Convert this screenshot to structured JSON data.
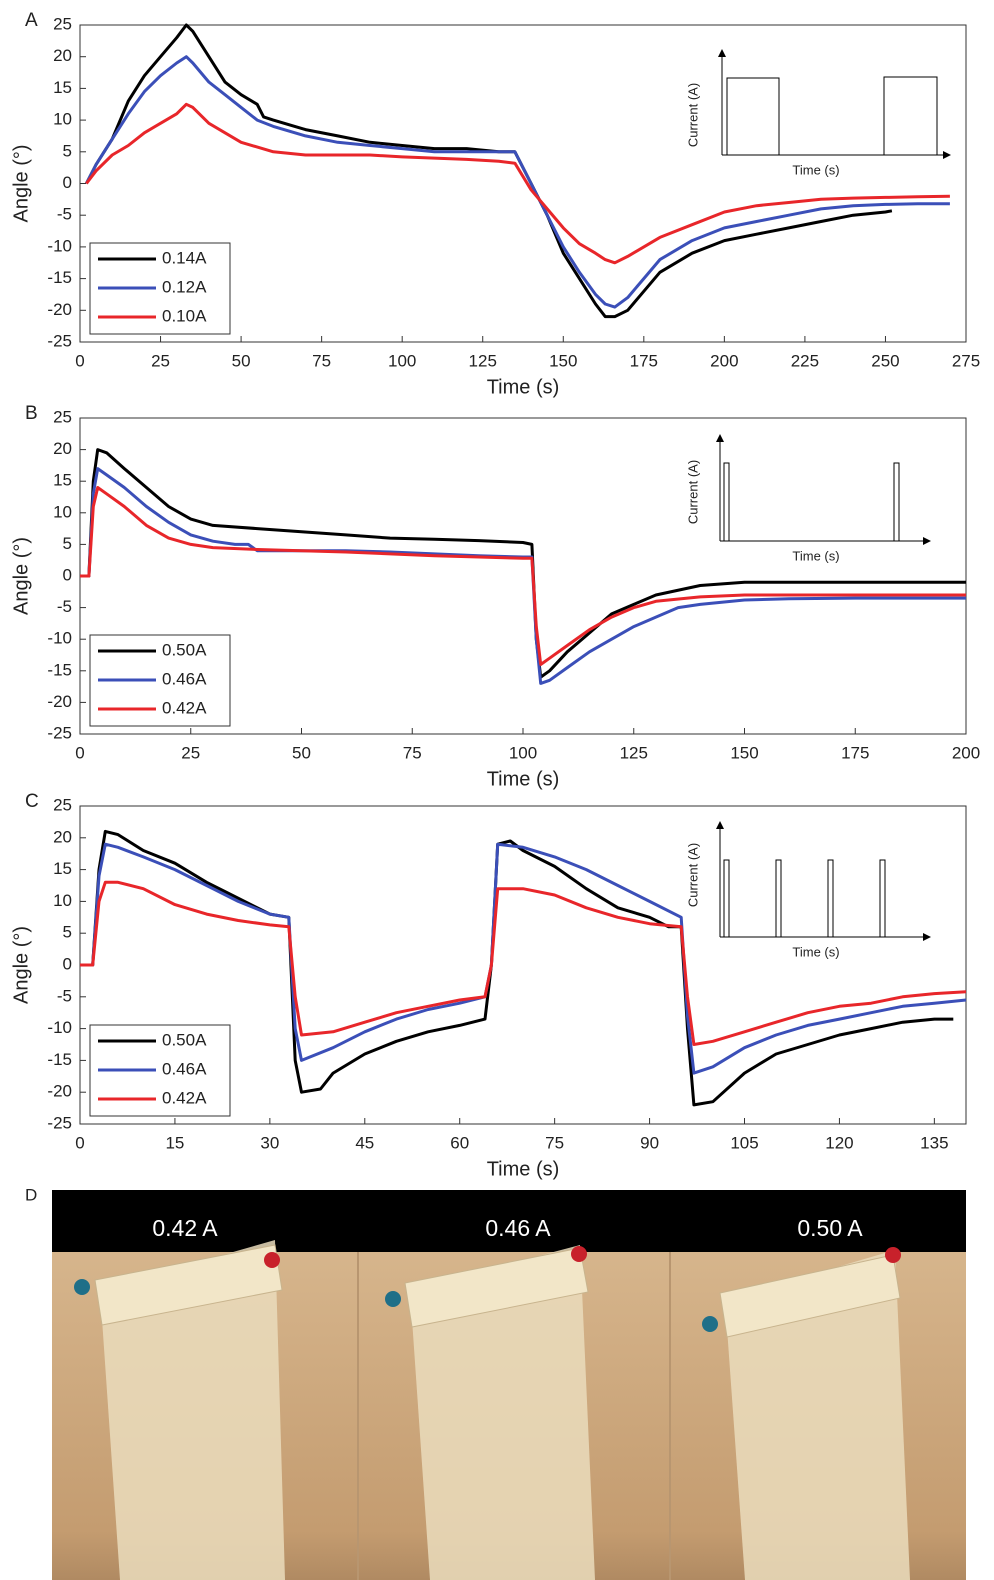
{
  "chart_data": [
    {
      "type": "line",
      "label": "A",
      "xlabel": "Time (s)",
      "ylabel": "Angle (°)",
      "xlim": [
        0,
        275
      ],
      "ylim": [
        -25,
        25
      ],
      "xticks": [
        0,
        25,
        50,
        75,
        100,
        125,
        150,
        175,
        200,
        225,
        250,
        275
      ],
      "yticks": [
        -25,
        -20,
        -15,
        -10,
        -5,
        0,
        5,
        10,
        15,
        20,
        25
      ],
      "legend": "lower left",
      "inset": {
        "ylabel": "Current (A)",
        "xlabel": "Time (s)"
      },
      "series": [
        {
          "name": "0.14A",
          "color": "#000000",
          "x": [
            2,
            5,
            10,
            15,
            20,
            25,
            30,
            33,
            35,
            40,
            45,
            50,
            55,
            57,
            60,
            70,
            80,
            90,
            100,
            110,
            120,
            130,
            135,
            140,
            145,
            150,
            155,
            160,
            163,
            166,
            170,
            175,
            180,
            190,
            200,
            210,
            220,
            230,
            240,
            250,
            252
          ],
          "values": [
            0,
            3,
            7,
            13,
            17,
            20,
            23,
            25,
            24,
            20,
            16,
            14,
            12.5,
            10.5,
            10,
            8.5,
            7.5,
            6.5,
            6,
            5.5,
            5.5,
            5,
            5,
            0,
            -5,
            -11,
            -15,
            -19,
            -21,
            -21,
            -20,
            -17,
            -14,
            -11,
            -9,
            -8,
            -7,
            -6,
            -5,
            -4.5,
            -4.3
          ]
        },
        {
          "name": "0.12A",
          "color": "#3b4fb8",
          "x": [
            2,
            5,
            10,
            15,
            20,
            25,
            30,
            33,
            35,
            40,
            45,
            50,
            55,
            60,
            70,
            80,
            90,
            100,
            110,
            120,
            130,
            135,
            140,
            145,
            150,
            155,
            160,
            163,
            166,
            170,
            175,
            180,
            190,
            200,
            210,
            220,
            230,
            240,
            250,
            260,
            270
          ],
          "values": [
            0,
            3,
            7,
            11,
            14.5,
            17,
            19,
            20,
            19,
            16,
            14,
            12,
            10,
            9,
            7.5,
            6.5,
            6,
            5.5,
            5,
            5,
            5,
            5,
            0,
            -5,
            -10,
            -14,
            -17.5,
            -19,
            -19.5,
            -18,
            -15,
            -12,
            -9,
            -7,
            -6,
            -5,
            -4,
            -3.5,
            -3.3,
            -3.2,
            -3.2
          ]
        },
        {
          "name": "0.10A",
          "color": "#e8262a",
          "x": [
            2,
            5,
            10,
            15,
            20,
            25,
            30,
            33,
            35,
            40,
            45,
            50,
            60,
            70,
            80,
            90,
            100,
            110,
            120,
            130,
            135,
            140,
            145,
            150,
            155,
            160,
            163,
            166,
            170,
            175,
            180,
            190,
            200,
            210,
            220,
            230,
            240,
            250,
            260,
            270
          ],
          "values": [
            0,
            2,
            4.5,
            6,
            8,
            9.5,
            11,
            12.5,
            12,
            9.5,
            8,
            6.5,
            5,
            4.5,
            4.5,
            4.5,
            4.2,
            4,
            3.8,
            3.5,
            3.2,
            -1,
            -4,
            -7,
            -9.5,
            -11,
            -12,
            -12.5,
            -11.5,
            -10,
            -8.5,
            -6.5,
            -4.5,
            -3.5,
            -3,
            -2.5,
            -2.3,
            -2.2,
            -2.1,
            -2
          ]
        }
      ]
    },
    {
      "type": "line",
      "label": "B",
      "xlabel": "Time (s)",
      "ylabel": "Angle (°)",
      "xlim": [
        0,
        200
      ],
      "ylim": [
        -25,
        25
      ],
      "xticks": [
        0,
        25,
        50,
        75,
        100,
        125,
        150,
        175,
        200
      ],
      "yticks": [
        -25,
        -20,
        -15,
        -10,
        -5,
        0,
        5,
        10,
        15,
        20,
        25
      ],
      "legend": "lower left",
      "inset": {
        "ylabel": "Current (A)",
        "xlabel": "Time (s)"
      },
      "series": [
        {
          "name": "0.50A",
          "color": "#000000",
          "x": [
            0,
            2,
            3,
            4,
            6,
            10,
            15,
            20,
            25,
            30,
            40,
            50,
            60,
            70,
            80,
            90,
            100,
            102,
            103,
            104,
            106,
            110,
            115,
            120,
            125,
            130,
            140,
            150,
            160,
            175,
            190,
            200
          ],
          "values": [
            0,
            0,
            15,
            20,
            19.5,
            17,
            14,
            11,
            9,
            8,
            7.5,
            7,
            6.5,
            6,
            5.8,
            5.6,
            5.3,
            5,
            -10,
            -16,
            -15,
            -12,
            -9,
            -6,
            -4.5,
            -3,
            -1.5,
            -1,
            -1,
            -1,
            -1,
            -1
          ]
        },
        {
          "name": "0.46A",
          "color": "#3b4fb8",
          "x": [
            0,
            2,
            3,
            4,
            6,
            10,
            15,
            20,
            25,
            30,
            35,
            38,
            40,
            50,
            60,
            70,
            80,
            90,
            100,
            102,
            103,
            104,
            106,
            110,
            115,
            120,
            125,
            130,
            135,
            140,
            150,
            160,
            175,
            190,
            200
          ],
          "values": [
            0,
            0,
            13,
            17,
            16,
            14,
            11,
            8.5,
            6.5,
            5.5,
            5,
            5,
            4,
            4,
            4,
            3.8,
            3.5,
            3.2,
            3,
            3,
            -10,
            -17,
            -16.5,
            -14.5,
            -12,
            -10,
            -8,
            -6.5,
            -5,
            -4.5,
            -3.8,
            -3.6,
            -3.5,
            -3.5,
            -3.5
          ]
        },
        {
          "name": "0.42A",
          "color": "#e8262a",
          "x": [
            0,
            2,
            3,
            4,
            6,
            10,
            15,
            20,
            25,
            30,
            40,
            50,
            60,
            70,
            80,
            90,
            100,
            102,
            103,
            104,
            106,
            110,
            115,
            120,
            125,
            130,
            140,
            150,
            160,
            175,
            190,
            200
          ],
          "values": [
            0,
            0,
            11,
            14,
            13,
            11,
            8,
            6,
            5,
            4.5,
            4.2,
            4,
            3.8,
            3.5,
            3.2,
            3,
            2.8,
            2.8,
            -8,
            -14,
            -13,
            -11,
            -8.5,
            -6.5,
            -5,
            -4,
            -3.3,
            -3,
            -3,
            -3,
            -3,
            -3
          ]
        }
      ]
    },
    {
      "type": "line",
      "label": "C",
      "xlabel": "Time (s)",
      "ylabel": "Angle (°)",
      "xlim": [
        0,
        140
      ],
      "ylim": [
        -25,
        25
      ],
      "xticks": [
        0,
        15,
        30,
        45,
        60,
        75,
        90,
        105,
        120,
        135
      ],
      "yticks": [
        -25,
        -20,
        -15,
        -10,
        -5,
        0,
        5,
        10,
        15,
        20,
        25
      ],
      "legend": "lower left",
      "inset": {
        "ylabel": "Current (A)",
        "xlabel": "Time (s)"
      },
      "series": [
        {
          "name": "0.50A",
          "color": "#000000",
          "x": [
            0,
            2,
            3,
            4,
            6,
            10,
            15,
            20,
            25,
            30,
            33,
            34,
            35,
            38,
            40,
            45,
            50,
            55,
            60,
            64,
            65,
            66,
            68,
            70,
            75,
            80,
            85,
            90,
            93,
            95,
            96,
            97,
            100,
            105,
            110,
            115,
            120,
            125,
            130,
            135,
            138
          ],
          "values": [
            0,
            0,
            15,
            21,
            20.5,
            18,
            16,
            13,
            10.5,
            8,
            7.5,
            -15,
            -20,
            -19.5,
            -17,
            -14,
            -12,
            -10.5,
            -9.5,
            -8.5,
            0,
            19,
            19.5,
            18,
            15.5,
            12,
            9,
            7.5,
            6,
            6,
            -10,
            -22,
            -21.5,
            -17,
            -14,
            -12.5,
            -11,
            -10,
            -9,
            -8.5,
            -8.5
          ]
        },
        {
          "name": "0.46A",
          "color": "#3b4fb8",
          "x": [
            0,
            2,
            3,
            4,
            6,
            10,
            15,
            20,
            25,
            30,
            33,
            34,
            35,
            40,
            45,
            50,
            55,
            60,
            64,
            65,
            66,
            70,
            75,
            80,
            85,
            90,
            95,
            96,
            97,
            100,
            105,
            110,
            115,
            120,
            125,
            130,
            135,
            140
          ],
          "values": [
            0,
            0,
            14,
            19,
            18.5,
            17,
            15,
            12.5,
            10,
            8,
            7.5,
            -10,
            -15,
            -13,
            -10.5,
            -8.5,
            -7,
            -6,
            -5,
            0,
            19,
            18.5,
            17,
            15,
            12.5,
            10,
            7.5,
            -8,
            -17,
            -16,
            -13,
            -11,
            -9.5,
            -8.5,
            -7.5,
            -6.5,
            -6,
            -5.5
          ]
        },
        {
          "name": "0.42A",
          "color": "#e8262a",
          "x": [
            0,
            2,
            3,
            4,
            6,
            10,
            15,
            20,
            25,
            30,
            33,
            34,
            35,
            40,
            45,
            50,
            55,
            60,
            64,
            65,
            66,
            70,
            75,
            80,
            85,
            90,
            95,
            96,
            97,
            100,
            105,
            110,
            115,
            120,
            125,
            130,
            135,
            140
          ],
          "values": [
            0,
            0,
            10,
            13,
            13,
            12,
            9.5,
            8,
            7,
            6.3,
            6,
            -5,
            -11,
            -10.5,
            -9,
            -7.5,
            -6.5,
            -5.5,
            -5,
            0,
            12,
            12,
            11,
            9,
            7.5,
            6.5,
            6,
            -5,
            -12.5,
            -12,
            -10.5,
            -9,
            -7.5,
            -6.5,
            -6,
            -5,
            -4.5,
            -4.2
          ]
        }
      ]
    }
  ],
  "photo_panel": {
    "label": "D",
    "captions": [
      "0.42 A",
      "0.46 A",
      "0.50 A"
    ]
  }
}
